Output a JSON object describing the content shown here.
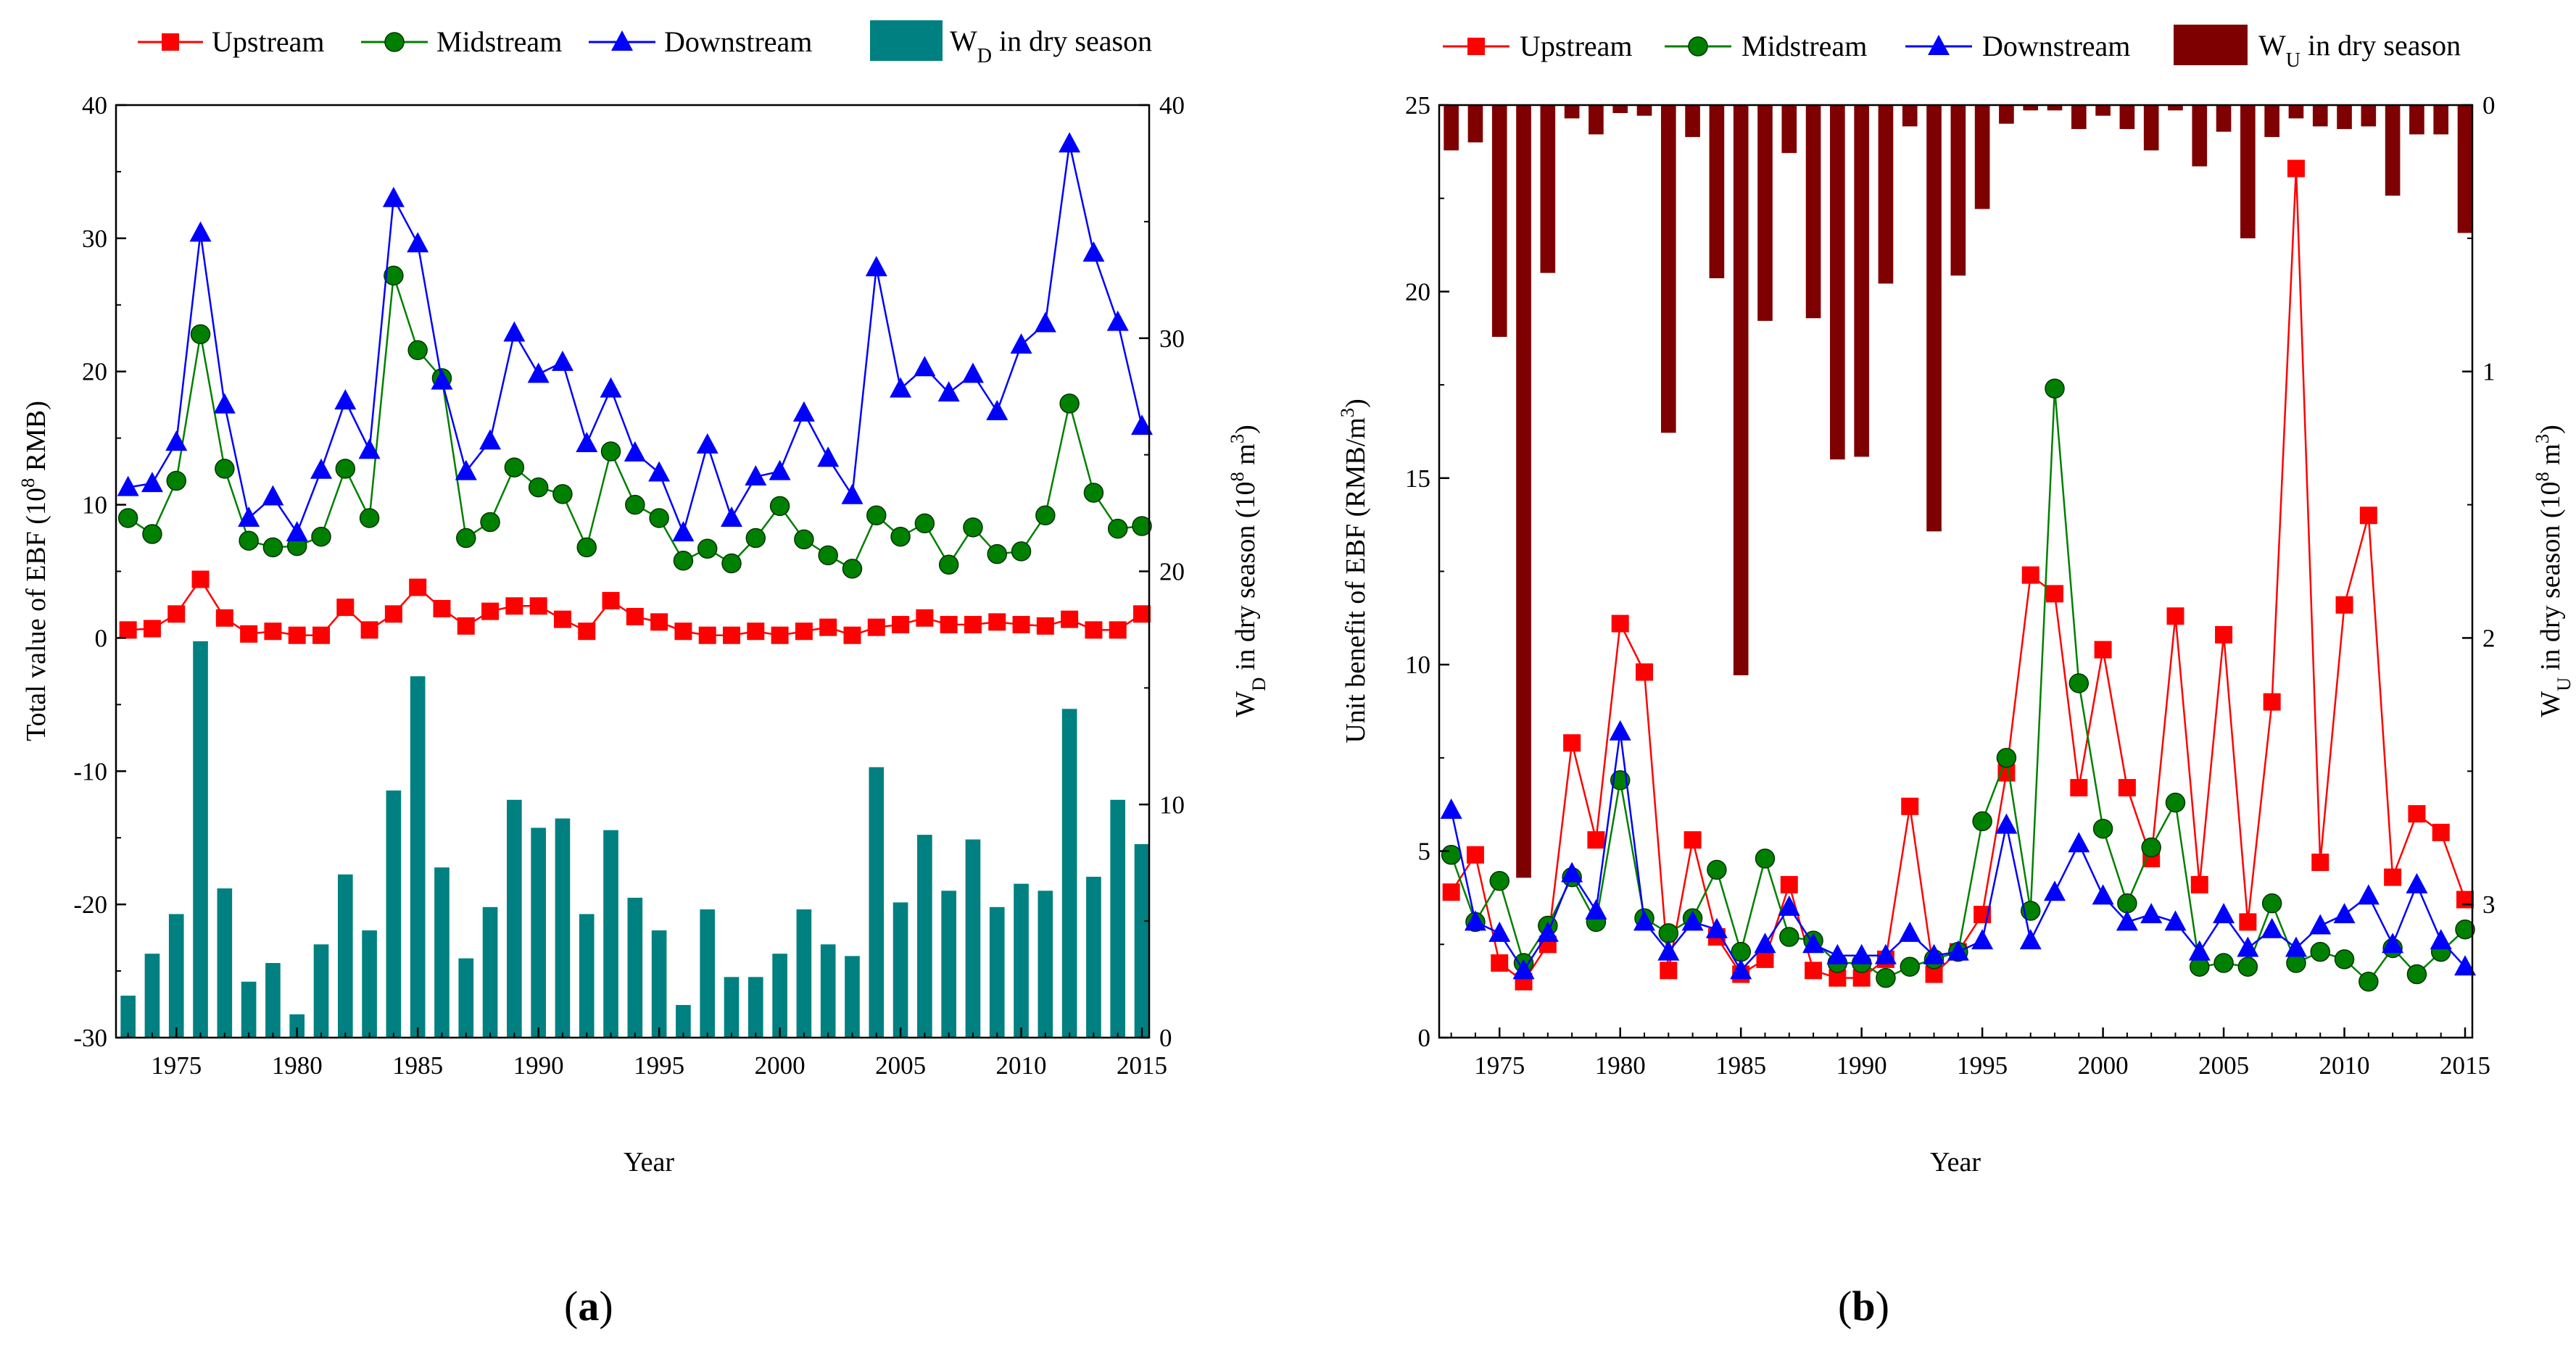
{
  "chart_data": [
    {
      "id": "a",
      "type": "line+bar",
      "title": "",
      "caption_letter": "a",
      "xlabel": "Year",
      "ylabel_left": "Total value of EBF (10^8 RMB)",
      "ylabel_right": "WD in dry season (10^8 m^3)",
      "xlim": [
        1972.5,
        2015.3
      ],
      "ylim_left": [
        -30,
        40
      ],
      "ylim_right": [
        0,
        40
      ],
      "right_axis_inverted": false,
      "x_ticks": [
        1975,
        1980,
        1985,
        1990,
        1995,
        2000,
        2005,
        2010,
        2015
      ],
      "x_tick_labels": [
        "1975",
        "1980",
        "1985",
        "1990",
        "1995",
        "2000",
        "2005",
        "2010",
        "2015"
      ],
      "y_left_ticks": [
        -30,
        -20,
        -10,
        0,
        10,
        20,
        30,
        40
      ],
      "y_left_tick_labels": [
        "-30",
        "-20",
        "-10",
        "0",
        "10",
        "20",
        "30",
        "40"
      ],
      "y_right_ticks": [
        0,
        10,
        20,
        30,
        40
      ],
      "y_right_tick_labels": [
        "0",
        "10",
        "20",
        "30",
        "40"
      ],
      "legend_position": "top",
      "x": [
        1973,
        1974,
        1975,
        1976,
        1977,
        1978,
        1979,
        1980,
        1981,
        1982,
        1983,
        1984,
        1985,
        1986,
        1987,
        1988,
        1989,
        1990,
        1991,
        1992,
        1993,
        1994,
        1995,
        1996,
        1997,
        1998,
        1999,
        2000,
        2001,
        2002,
        2003,
        2004,
        2005,
        2006,
        2007,
        2008,
        2009,
        2010,
        2011,
        2012,
        2013,
        2014,
        2015
      ],
      "series": [
        {
          "name": "Upstream",
          "color": "#ff0000",
          "marker": "square",
          "axis": "left",
          "values": [
            0.6,
            0.7,
            1.8,
            4.4,
            1.5,
            0.3,
            0.5,
            0.2,
            0.2,
            2.3,
            0.6,
            1.8,
            3.8,
            2.2,
            0.9,
            2.0,
            2.4,
            2.4,
            1.4,
            0.5,
            2.8,
            1.6,
            1.2,
            0.5,
            0.2,
            0.2,
            0.5,
            0.2,
            0.5,
            0.8,
            0.2,
            0.8,
            1.0,
            1.5,
            1.0,
            1.0,
            1.2,
            1.0,
            0.9,
            1.4,
            0.6,
            0.6,
            1.8
          ]
        },
        {
          "name": "Midstream",
          "color": "#008000",
          "marker": "circle",
          "axis": "left",
          "values": [
            9.0,
            7.8,
            11.8,
            22.8,
            12.7,
            7.3,
            6.8,
            6.9,
            7.6,
            12.7,
            9.0,
            27.2,
            21.6,
            19.5,
            7.5,
            8.7,
            12.8,
            11.3,
            10.8,
            6.8,
            14.0,
            10.0,
            9.0,
            5.8,
            6.7,
            5.6,
            7.5,
            9.9,
            7.4,
            6.2,
            5.2,
            9.2,
            7.6,
            8.6,
            5.5,
            8.3,
            6.3,
            6.5,
            9.2,
            17.6,
            10.9,
            8.2,
            8.4
          ]
        },
        {
          "name": "Downstream",
          "color": "#0000ff",
          "marker": "triangle",
          "axis": "left",
          "values": [
            11.3,
            11.6,
            14.7,
            30.4,
            17.5,
            9.0,
            10.6,
            7.9,
            12.6,
            17.8,
            14.1,
            33.0,
            29.6,
            19.3,
            12.5,
            14.8,
            22.9,
            19.8,
            20.7,
            14.6,
            18.7,
            13.9,
            12.4,
            7.9,
            14.5,
            9.0,
            12.1,
            12.5,
            16.9,
            13.5,
            10.7,
            27.8,
            18.7,
            20.3,
            18.4,
            19.8,
            17.0,
            22.0,
            23.6,
            37.1,
            28.9,
            23.7,
            15.9
          ]
        },
        {
          "name": "WD in dry season",
          "color": "#008080",
          "type": "bar",
          "axis": "right",
          "values": [
            1.8,
            3.6,
            5.3,
            17.0,
            6.4,
            2.4,
            3.2,
            1.0,
            4.0,
            7.0,
            4.6,
            10.6,
            15.5,
            7.3,
            3.4,
            5.6,
            10.2,
            9.0,
            9.4,
            5.3,
            8.9,
            6.0,
            4.6,
            1.4,
            5.5,
            2.6,
            2.6,
            3.6,
            5.5,
            4.0,
            3.5,
            11.6,
            5.8,
            8.7,
            6.3,
            8.5,
            5.6,
            6.6,
            6.3,
            14.1,
            6.9,
            10.2,
            8.3
          ]
        }
      ]
    },
    {
      "id": "b",
      "type": "line+bar",
      "title": "",
      "caption_letter": "b",
      "xlabel": "Year",
      "ylabel_left": "Unit benefit of EBF (RMB/m^3)",
      "ylabel_right": "WU in dry season (10^8 m^3)",
      "xlim": [
        1972.5,
        2015.3
      ],
      "ylim_left": [
        0,
        25
      ],
      "ylim_right": [
        0,
        3.5
      ],
      "right_axis_inverted": true,
      "x_ticks": [
        1975,
        1980,
        1985,
        1990,
        1995,
        2000,
        2005,
        2010,
        2015
      ],
      "x_tick_labels": [
        "1975",
        "1980",
        "1985",
        "1990",
        "1995",
        "2000",
        "2005",
        "2010",
        "2015"
      ],
      "y_left_ticks": [
        0,
        5,
        10,
        15,
        20,
        25
      ],
      "y_left_tick_labels": [
        "0",
        "5",
        "10",
        "15",
        "20",
        "25"
      ],
      "y_right_ticks": [
        0,
        1,
        2,
        3
      ],
      "y_right_tick_labels": [
        "0",
        "1",
        "2",
        "3"
      ],
      "legend_position": "top",
      "x": [
        1973,
        1974,
        1975,
        1976,
        1977,
        1978,
        1979,
        1980,
        1981,
        1982,
        1983,
        1984,
        1985,
        1986,
        1987,
        1988,
        1989,
        1990,
        1991,
        1992,
        1993,
        1994,
        1995,
        1996,
        1997,
        1998,
        1999,
        2000,
        2001,
        2002,
        2003,
        2004,
        2005,
        2006,
        2007,
        2008,
        2009,
        2010,
        2011,
        2012,
        2013,
        2014,
        2015
      ],
      "series": [
        {
          "name": "Upstream",
          "color": "#ff0000",
          "marker": "square",
          "axis": "left",
          "values": [
            3.9,
            4.9,
            2.0,
            1.5,
            2.5,
            7.9,
            5.3,
            11.1,
            9.8,
            1.8,
            5.3,
            2.7,
            1.7,
            2.1,
            4.1,
            1.8,
            1.6,
            1.6,
            2.1,
            6.2,
            1.7,
            2.3,
            3.3,
            7.1,
            12.4,
            11.9,
            6.7,
            10.4,
            6.7,
            4.8,
            11.3,
            4.1,
            10.8,
            3.1,
            9.0,
            23.3,
            4.7,
            11.6,
            14.0,
            4.3,
            6.0,
            5.5,
            3.7
          ]
        },
        {
          "name": "Midstream",
          "color": "#008000",
          "marker": "circle",
          "axis": "left",
          "values": [
            4.9,
            3.1,
            4.2,
            2.0,
            3.0,
            4.3,
            3.1,
            6.9,
            3.2,
            2.8,
            3.2,
            4.5,
            2.3,
            4.8,
            2.7,
            2.6,
            2.0,
            2.0,
            1.6,
            1.9,
            2.1,
            2.3,
            5.8,
            7.5,
            3.4,
            17.4,
            9.5,
            5.6,
            3.6,
            5.1,
            6.3,
            1.9,
            2.0,
            1.9,
            3.6,
            2.0,
            2.3,
            2.1,
            1.5,
            2.4,
            1.7,
            2.3,
            2.9
          ]
        },
        {
          "name": "Downstream",
          "color": "#0000ff",
          "marker": "triangle",
          "axis": "left",
          "values": [
            6.1,
            3.1,
            2.8,
            1.8,
            2.8,
            4.4,
            3.4,
            8.2,
            3.1,
            2.3,
            3.1,
            2.9,
            1.8,
            2.5,
            3.5,
            2.5,
            2.2,
            2.2,
            2.2,
            2.8,
            2.2,
            2.3,
            2.6,
            5.7,
            2.6,
            3.9,
            5.2,
            3.8,
            3.1,
            3.3,
            3.1,
            2.3,
            3.3,
            2.4,
            2.9,
            2.4,
            3.0,
            3.3,
            3.8,
            2.5,
            4.1,
            2.6,
            1.9
          ]
        },
        {
          "name": "WU in dry season",
          "color": "#7f0000",
          "type": "bar",
          "axis": "right",
          "values": [
            0.17,
            0.14,
            0.87,
            2.9,
            0.63,
            0.05,
            0.11,
            0.03,
            0.04,
            1.23,
            0.12,
            0.65,
            2.14,
            0.81,
            0.18,
            0.8,
            1.33,
            1.32,
            0.67,
            0.08,
            1.6,
            0.64,
            0.39,
            0.07,
            0.02,
            0.02,
            0.09,
            0.04,
            0.09,
            0.17,
            0.02,
            0.23,
            0.1,
            0.5,
            0.12,
            0.05,
            0.08,
            0.09,
            0.08,
            0.34,
            0.11,
            0.11,
            0.48
          ]
        }
      ]
    }
  ],
  "legend": {
    "a": [
      "Upstream",
      "Midstream",
      "Downstream",
      "WD in dry season"
    ],
    "b": [
      "Upstream",
      "Midstream",
      "Downstream",
      "WU in dry season"
    ]
  }
}
